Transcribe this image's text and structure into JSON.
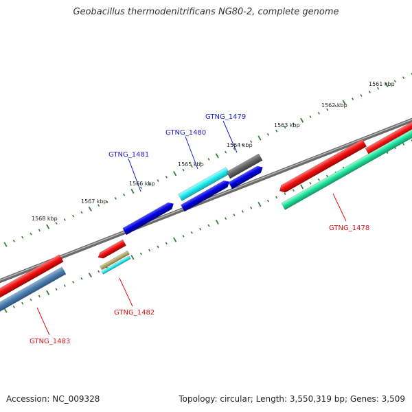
{
  "title": "Geobacillus thermodenitrificans NG80-2, complete genome",
  "footer": {
    "accession": "Accession: NC_009328",
    "summary": "Topology: circular; Length: 3,550,319 bp; Genes: 3,509"
  },
  "colors": {
    "backbone": "#888888",
    "tick": "#2e7d32",
    "label_forward": "#1a1acc",
    "label_reverse": "#dd1111"
  },
  "tick_labels": [
    "1561 kbp",
    "1562 kbp",
    "1563 kbp",
    "1564 kbp",
    "1565 kbp",
    "1566 kbp",
    "1567 kbp",
    "1568 kbp"
  ],
  "genes": [
    {
      "id": "GTNG_1478",
      "strand": "reverse",
      "color": "#ee1111",
      "label_color": "#dd1111"
    },
    {
      "id": "GTNG_1479",
      "strand": "forward",
      "color": "#0000dd",
      "label_color": "#1a1acc"
    },
    {
      "id": "GTNG_1480",
      "strand": "forward",
      "color": "#0000dd",
      "label_color": "#1a1acc"
    },
    {
      "id": "GTNG_1481",
      "strand": "forward",
      "color": "#0000dd",
      "label_color": "#1a1acc"
    },
    {
      "id": "GTNG_1482",
      "strand": "reverse",
      "color": "#ee1111",
      "label_color": "#dd1111"
    },
    {
      "id": "GTNG_1483",
      "strand": "reverse",
      "color": "#ee1111",
      "label_color": "#dd1111"
    }
  ]
}
